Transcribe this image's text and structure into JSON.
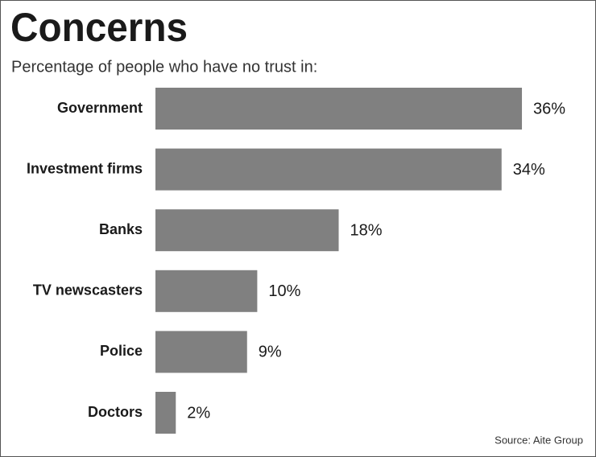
{
  "chart_data": {
    "type": "bar",
    "orientation": "horizontal",
    "title": "Concerns",
    "subtitle": "Percentage of people who have no trust in:",
    "source": "Source: Aite Group",
    "categories": [
      "Government",
      "Investment firms",
      "Banks",
      "TV newscasters",
      "Police",
      "Doctors"
    ],
    "values": [
      36,
      34,
      18,
      10,
      9,
      2
    ],
    "value_labels": [
      "36%",
      "34%",
      "18%",
      "10%",
      "9%",
      "2%"
    ],
    "color": "#808080"
  }
}
